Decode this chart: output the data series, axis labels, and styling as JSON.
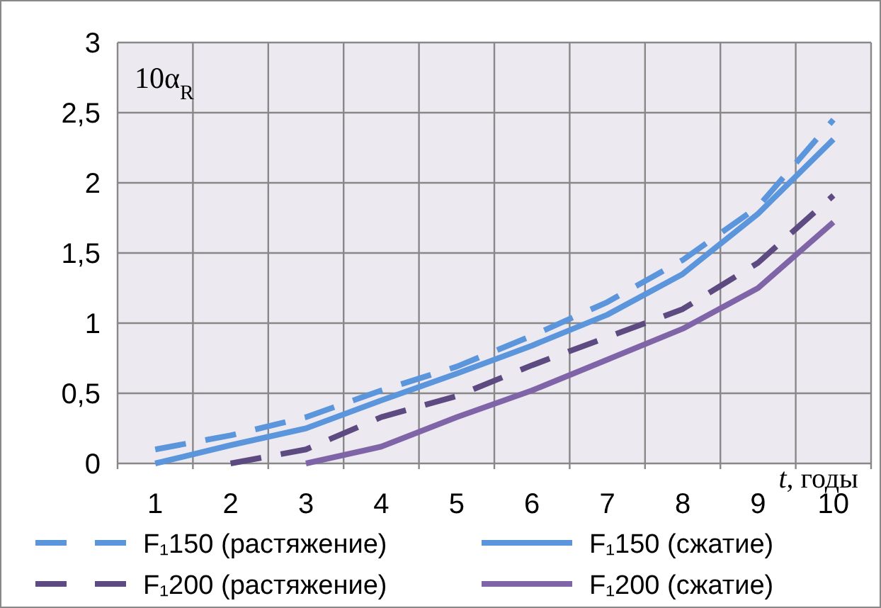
{
  "chart_data": {
    "type": "line",
    "ylabel": "10α$_{R}$",
    "xlabel": "t, годы",
    "categories": [
      "1",
      "2",
      "3",
      "4",
      "5",
      "6",
      "7",
      "8",
      "9",
      "10"
    ],
    "ylim": [
      0,
      3
    ],
    "yticks": [
      {
        "value": 0,
        "label": "0"
      },
      {
        "value": 0.5,
        "label": "0,5"
      },
      {
        "value": 1,
        "label": "1"
      },
      {
        "value": 1.5,
        "label": "1,5"
      },
      {
        "value": 2,
        "label": "2"
      },
      {
        "value": 2.5,
        "label": "2,5"
      },
      {
        "value": 3,
        "label": "3"
      }
    ],
    "grid": true,
    "legend": "bottom",
    "series": [
      {
        "name": "F₁150 (растяжение)",
        "color": "#5b95dc",
        "line_style": "dashed",
        "values": [
          0.1,
          0.2,
          0.33,
          0.52,
          0.69,
          0.91,
          1.15,
          1.45,
          1.83,
          2.45
        ]
      },
      {
        "name": "F₁150 (сжатие)",
        "color": "#5b95dc",
        "line_style": "solid",
        "values": [
          0,
          0.13,
          0.25,
          0.45,
          0.64,
          0.84,
          1.06,
          1.35,
          1.78,
          2.31
        ]
      },
      {
        "name": "F₁200 (растяжение)",
        "color": "#5c4a80",
        "line_style": "dashed",
        "values": [
          null,
          0,
          0.1,
          0.33,
          0.48,
          0.7,
          0.9,
          1.1,
          1.43,
          1.91
        ]
      },
      {
        "name": "F₁200 (сжатие)",
        "color": "#8064a8",
        "line_style": "solid",
        "values": [
          null,
          null,
          0,
          0.12,
          0.33,
          0.52,
          0.74,
          0.96,
          1.25,
          1.72
        ]
      }
    ]
  }
}
